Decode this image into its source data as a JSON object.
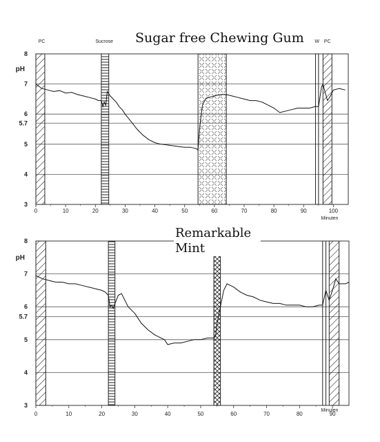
{
  "chart_data": [
    {
      "type": "line",
      "title": "Sugar free Chewing Gum",
      "ylabel": "pH",
      "xlabel": "Minuten",
      "xlim": [
        0,
        105
      ],
      "ylim": [
        3,
        8
      ],
      "xticks": [
        0,
        10,
        20,
        30,
        40,
        50,
        60,
        70,
        80,
        90,
        100
      ],
      "yticks": [
        "3",
        "4",
        "5",
        "5.7",
        "6",
        "7",
        "8"
      ],
      "ytick_values": [
        3,
        4,
        5,
        5.7,
        6,
        7,
        8
      ],
      "grid": true,
      "annotations": [
        {
          "text": "PC",
          "x": 2
        },
        {
          "text": "Sucrose",
          "x": 23
        },
        {
          "text": "W",
          "x": 94.5
        },
        {
          "text": "PC",
          "x": 98
        }
      ],
      "bands": [
        {
          "x0": 0,
          "x1": 3,
          "pattern": "diagonal"
        },
        {
          "x0": 22,
          "x1": 24.5,
          "pattern": "horizontal"
        },
        {
          "x0": 54.5,
          "x1": 64,
          "pattern": "dotted-cross"
        },
        {
          "x0": 94,
          "x1": 95,
          "pattern": "none"
        },
        {
          "x0": 96.5,
          "x1": 99.5,
          "pattern": "diagonal"
        }
      ],
      "series": [
        {
          "x": [
            0,
            2,
            4,
            6,
            8,
            10,
            12,
            14,
            16,
            18,
            20,
            21,
            22,
            22.5,
            23,
            23.5,
            24,
            25,
            26,
            27,
            28,
            29,
            30,
            32,
            34,
            36,
            38,
            40,
            42,
            44,
            46,
            48,
            50,
            52,
            54,
            54.5,
            55,
            55.5,
            56,
            57,
            58,
            60,
            62,
            64,
            66,
            68,
            70,
            72,
            74,
            76,
            78,
            80,
            82,
            84,
            86,
            88,
            90,
            92,
            94,
            95,
            96,
            96.5,
            97,
            98,
            99,
            100,
            102,
            104
          ],
          "y": [
            7.0,
            6.85,
            6.8,
            6.75,
            6.78,
            6.7,
            6.72,
            6.65,
            6.6,
            6.55,
            6.5,
            6.45,
            6.45,
            6.25,
            6.4,
            6.3,
            6.75,
            6.6,
            6.5,
            6.4,
            6.25,
            6.15,
            6.0,
            5.75,
            5.5,
            5.3,
            5.15,
            5.05,
            5.0,
            4.98,
            4.95,
            4.92,
            4.9,
            4.9,
            4.85,
            4.8,
            5.5,
            5.9,
            6.3,
            6.5,
            6.55,
            6.6,
            6.65,
            6.65,
            6.6,
            6.55,
            6.5,
            6.45,
            6.45,
            6.4,
            6.3,
            6.2,
            6.05,
            6.1,
            6.15,
            6.2,
            6.2,
            6.2,
            6.25,
            6.25,
            6.9,
            7.0,
            6.8,
            6.45,
            6.6,
            6.8,
            6.85,
            6.8
          ]
        }
      ]
    },
    {
      "type": "line",
      "title": "Remarkable Mint",
      "ylabel": "pH",
      "xlabel": "Minuten",
      "xlim": [
        0,
        95
      ],
      "ylim": [
        3,
        8
      ],
      "xticks": [
        0,
        10,
        20,
        30,
        40,
        50,
        60,
        70,
        80,
        90
      ],
      "yticks": [
        "3",
        "4",
        "5",
        "5.7",
        "6",
        "7",
        "8"
      ],
      "ytick_values": [
        3,
        4,
        5,
        5.7,
        6,
        7,
        8
      ],
      "grid": true,
      "annotations": [],
      "bands": [
        {
          "x0": 0,
          "x1": 3,
          "pattern": "diagonal"
        },
        {
          "x0": 22,
          "x1": 24,
          "pattern": "horizontal"
        },
        {
          "x0": 54,
          "x1": 56,
          "pattern": "crosshatch"
        },
        {
          "x0": 87,
          "x1": 88,
          "pattern": "none"
        },
        {
          "x0": 89,
          "x1": 92,
          "pattern": "diagonal"
        }
      ],
      "series": [
        {
          "x": [
            0,
            2,
            4,
            6,
            8,
            10,
            12,
            14,
            16,
            18,
            20,
            21,
            22,
            22.5,
            23,
            23.5,
            24,
            25,
            26,
            27,
            28,
            30,
            32,
            34,
            36,
            38,
            39,
            40,
            42,
            44,
            46,
            48,
            50,
            52,
            54,
            54.5,
            55,
            56,
            57,
            58,
            60,
            62,
            64,
            66,
            68,
            70,
            72,
            74,
            76,
            78,
            80,
            82,
            84,
            86,
            87,
            88,
            89,
            90,
            91,
            92,
            94,
            95
          ],
          "y": [
            6.95,
            6.85,
            6.8,
            6.75,
            6.75,
            6.7,
            6.7,
            6.65,
            6.6,
            6.55,
            6.5,
            6.45,
            6.35,
            6.0,
            6.05,
            5.95,
            6.1,
            6.35,
            6.4,
            6.2,
            6.0,
            5.8,
            5.5,
            5.3,
            5.15,
            5.05,
            5.0,
            4.85,
            4.9,
            4.9,
            4.95,
            5.0,
            5.0,
            5.05,
            5.05,
            5.1,
            5.5,
            6.0,
            6.5,
            6.7,
            6.6,
            6.45,
            6.35,
            6.3,
            6.2,
            6.15,
            6.1,
            6.1,
            6.05,
            6.05,
            6.05,
            6.0,
            6.0,
            6.05,
            6.05,
            6.5,
            6.2,
            6.5,
            6.85,
            6.7,
            6.7,
            6.75
          ]
        }
      ]
    }
  ]
}
